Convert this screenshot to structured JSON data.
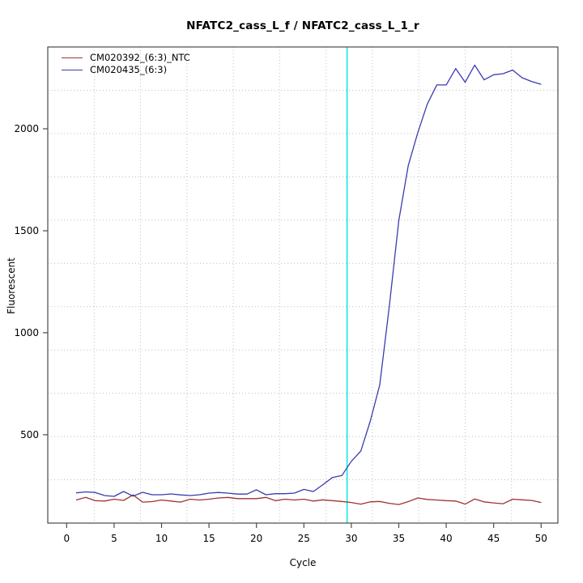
{
  "title": "NFATC2_cass_L_f / NFATC2_cass_L_1_r",
  "chart_data": {
    "type": "line",
    "title": "NFATC2_cass_L_f / NFATC2_cass_L_1_r",
    "xlabel": "Cycle",
    "ylabel": "Fluorescent",
    "x_ticks": [
      0,
      5,
      10,
      15,
      20,
      25,
      30,
      35,
      40,
      45,
      50
    ],
    "y_ticks": [
      500,
      1000,
      1500,
      2000
    ],
    "xlim": [
      -1.99,
      51.77
    ],
    "ylim": [
      67,
      2401
    ],
    "grid": {
      "style": "dotted",
      "color": "#bfbfbf",
      "divisions_x": 11,
      "divisions_y": 11
    },
    "legend_position": "top-left",
    "threshold_line": {
      "x": 29.55,
      "color": "#00e8e8"
    },
    "axis_color": "#4a4a4a",
    "x": [
      1,
      2,
      3,
      4,
      5,
      6,
      7,
      8,
      9,
      10,
      11,
      12,
      13,
      14,
      15,
      16,
      17,
      18,
      19,
      20,
      21,
      22,
      23,
      24,
      25,
      26,
      27,
      28,
      29,
      30,
      31,
      32,
      33,
      34,
      35,
      36,
      37,
      38,
      39,
      40,
      41,
      42,
      43,
      44,
      45,
      46,
      47,
      48,
      49,
      50
    ],
    "series": [
      {
        "name": "CM020392_(6:3)_NTC",
        "color": "#a03232",
        "values": [
          180,
          193,
          177,
          175,
          184,
          178,
          205,
          170,
          172,
          180,
          175,
          170,
          184,
          180,
          184,
          190,
          193,
          187,
          187,
          187,
          193,
          177,
          184,
          180,
          184,
          175,
          181,
          177,
          173,
          168,
          160,
          171,
          173,
          164,
          158,
          172,
          190,
          183,
          180,
          177,
          175,
          160,
          185,
          171,
          166,
          162,
          184,
          181,
          178,
          168
        ]
      },
      {
        "name": "CM020435_(6:3)",
        "color": "#3b3bb0",
        "values": [
          215,
          220,
          217,
          202,
          198,
          222,
          199,
          218,
          206,
          206,
          210,
          205,
          202,
          206,
          214,
          217,
          214,
          209,
          209,
          230,
          206,
          211,
          211,
          214,
          232,
          222,
          255,
          290,
          300,
          370,
          420,
          567,
          745,
          1130,
          1550,
          1820,
          1980,
          2120,
          2215,
          2215,
          2295,
          2228,
          2312,
          2240,
          2265,
          2270,
          2288,
          2250,
          2232,
          2218
        ]
      }
    ]
  }
}
